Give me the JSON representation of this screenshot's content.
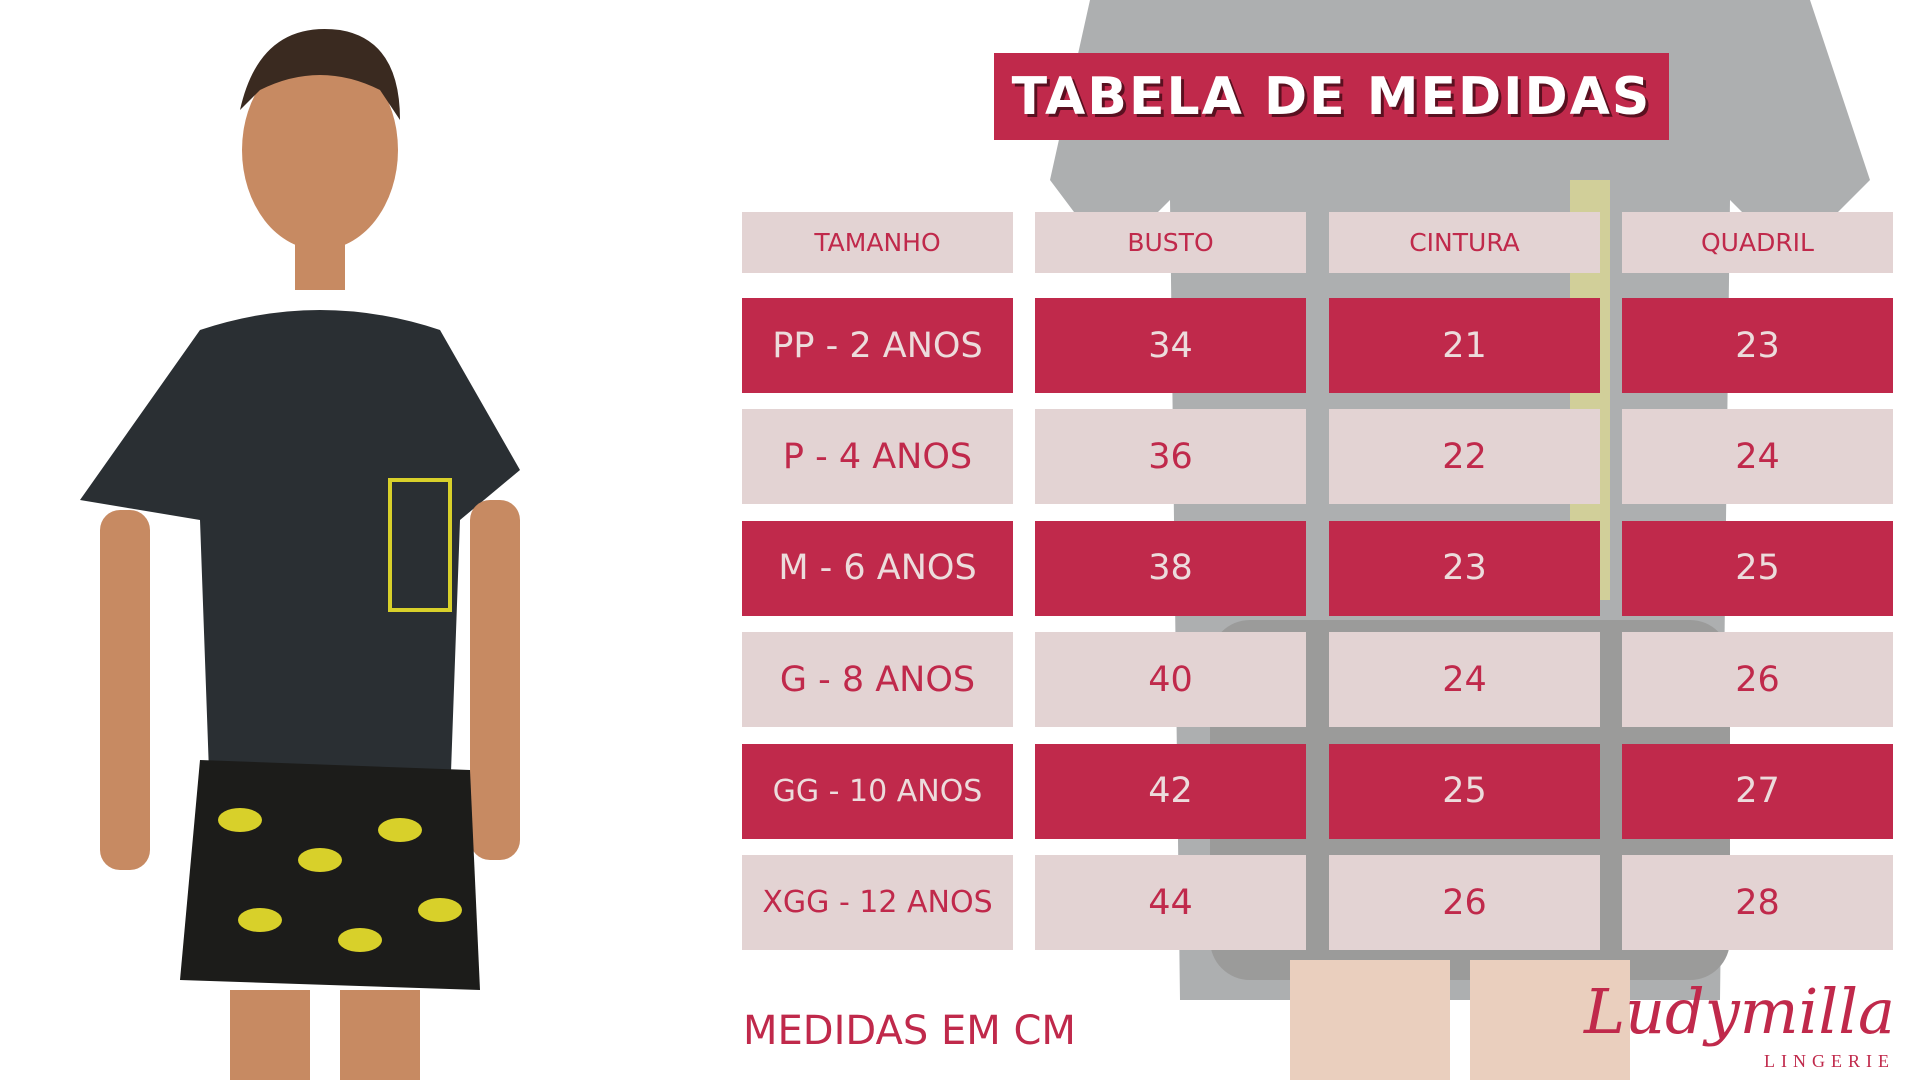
{
  "title": "TABELA DE MEDIDAS",
  "table": {
    "headers": [
      "TAMANHO",
      "BUSTO",
      "CINTURA",
      "QUADRIL"
    ],
    "rows": [
      {
        "size": "PP - 2 ANOS",
        "busto": "34",
        "cintura": "21",
        "quadril": "23"
      },
      {
        "size": "P - 4 ANOS",
        "busto": "36",
        "cintura": "22",
        "quadril": "24"
      },
      {
        "size": "M - 6 ANOS",
        "busto": "38",
        "cintura": "23",
        "quadril": "25"
      },
      {
        "size": "G - 8 ANOS",
        "busto": "40",
        "cintura": "24",
        "quadril": "26"
      },
      {
        "size": "GG - 10 ANOS",
        "busto": "42",
        "cintura": "25",
        "quadril": "27"
      },
      {
        "size": "XGG - 12 ANOS",
        "busto": "44",
        "cintura": "26",
        "quadril": "28"
      }
    ]
  },
  "footer_note": "MEDIDAS EM CM",
  "logo": {
    "name": "Ludymilla",
    "sub": "LINGERIE"
  },
  "colors": {
    "accent": "#c0294b",
    "light": "#e3d3d3"
  }
}
